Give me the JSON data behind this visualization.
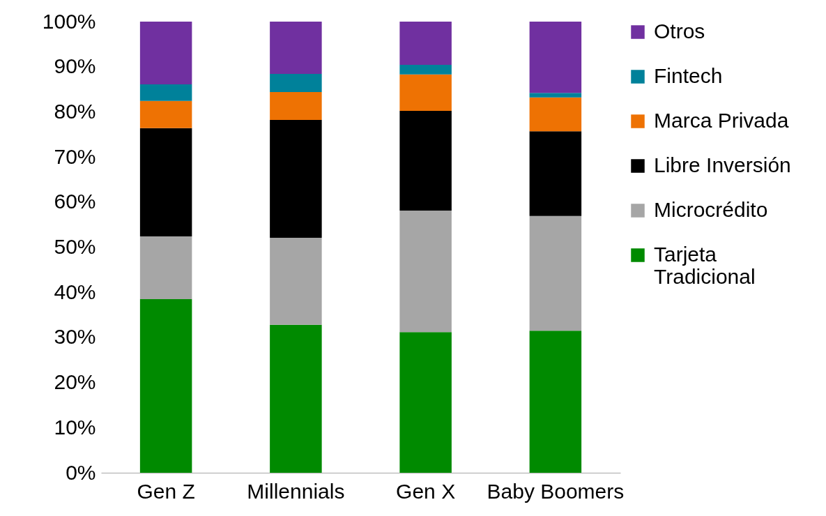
{
  "chart_data": {
    "type": "bar",
    "stacked": true,
    "categories": [
      "Gen Z",
      "Millennials",
      "Gen X",
      "Baby Boomers"
    ],
    "series": [
      {
        "name": "Tarjeta Tradicional",
        "color": "#008a00",
        "values": [
          38.5,
          32.8,
          31.2,
          31.5
        ]
      },
      {
        "name": "Microcrédito",
        "color": "#a6a6a6",
        "values": [
          13.9,
          19.3,
          26.9,
          25.4
        ]
      },
      {
        "name": "Libre Inversión",
        "color": "#000000",
        "values": [
          24.0,
          26.1,
          22.1,
          18.8
        ]
      },
      {
        "name": "Marca Privada",
        "color": "#ee7203",
        "values": [
          6.0,
          6.2,
          8.1,
          7.5
        ]
      },
      {
        "name": "Fintech",
        "color": "#00819a",
        "values": [
          3.7,
          4.0,
          2.1,
          1.0
        ]
      },
      {
        "name": "Otros",
        "color": "#7030a0",
        "values": [
          13.9,
          11.6,
          9.6,
          15.8
        ]
      }
    ],
    "ylim": [
      0,
      100
    ],
    "yticks": [
      {
        "value": 0,
        "label": "0%"
      },
      {
        "value": 10,
        "label": "10%"
      },
      {
        "value": 20,
        "label": "20%"
      },
      {
        "value": 30,
        "label": "30%"
      },
      {
        "value": 40,
        "label": "40%"
      },
      {
        "value": 50,
        "label": "50%"
      },
      {
        "value": 60,
        "label": "60%"
      },
      {
        "value": 70,
        "label": "70%"
      },
      {
        "value": 80,
        "label": "80%"
      },
      {
        "value": 90,
        "label": "90%"
      },
      {
        "value": 100,
        "label": "100%"
      }
    ],
    "grid": false,
    "legend": "right"
  }
}
